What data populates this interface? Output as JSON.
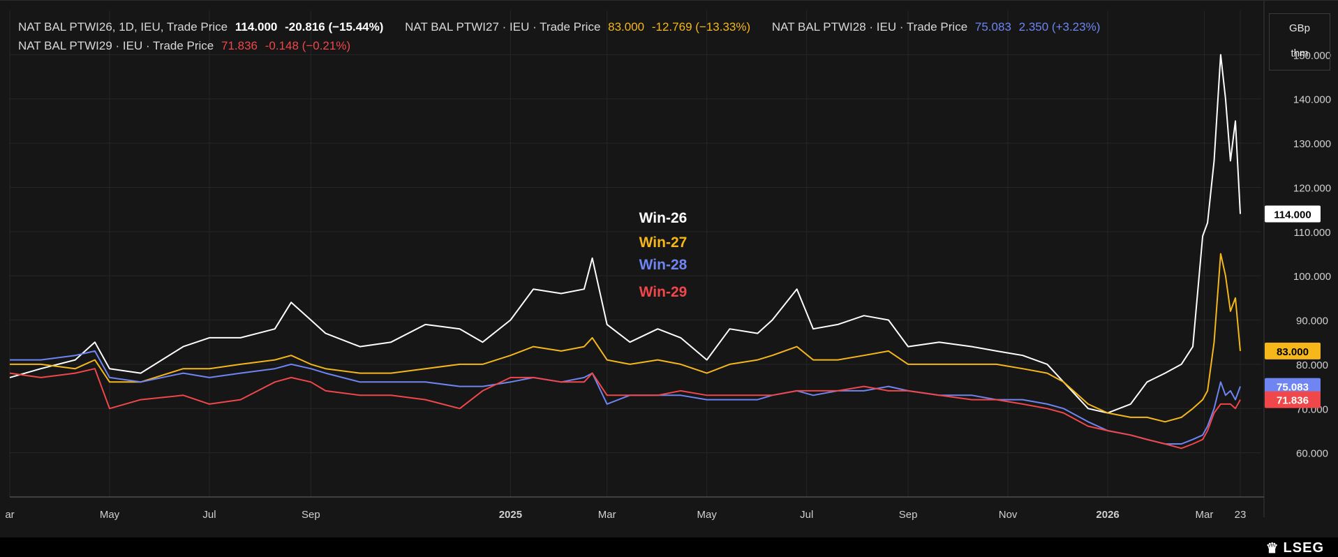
{
  "legend": [
    {
      "name": "NAT BAL PTWI26, 1D, IEU, Trade Price",
      "last": "114.000",
      "change": "-20.816 (−15.44%)",
      "color": "#ffffff",
      "line": 0
    },
    {
      "name": "NAT BAL PTWI27 · IEU · Trade Price",
      "last": "83.000",
      "change": "-12.769 (−13.33%)",
      "color": "#f5b71a",
      "line": 0
    },
    {
      "name": "NAT BAL PTWI28 · IEU · Trade Price",
      "last": "75.083",
      "change": "2.350 (+3.23%)",
      "color": "#6e85f2",
      "line": 0
    },
    {
      "name": "NAT BAL PTWI29 · IEU · Trade Price",
      "last": "71.836",
      "change": "-0.148 (−0.21%)",
      "color": "#f0474a",
      "line": 1
    }
  ],
  "unit": {
    "line1": "GBp",
    "line2": "thm"
  },
  "branding": {
    "text": "LSEG",
    "mark_icon": "lseg-crest-icon"
  },
  "chart_data": {
    "type": "line",
    "ylim": [
      50,
      160
    ],
    "y_ticks": [
      60,
      70,
      80,
      90,
      100,
      110,
      120,
      130,
      140,
      150
    ],
    "y_tick_labels": [
      "60.000",
      "70.000",
      "80.000",
      "90.000",
      "100.000",
      "110.000",
      "120.000",
      "130.000",
      "140.000",
      "150.000"
    ],
    "x_range": [
      "2024-03-01",
      "2026-03-23"
    ],
    "x_ticks": [
      {
        "date": "2024-03-01",
        "label": "ar"
      },
      {
        "date": "2024-05-01",
        "label": "May"
      },
      {
        "date": "2024-07-01",
        "label": "Jul"
      },
      {
        "date": "2024-09-01",
        "label": "Sep"
      },
      {
        "date": "2025-01-01",
        "label": "2025",
        "bold": true
      },
      {
        "date": "2025-03-01",
        "label": "Mar"
      },
      {
        "date": "2025-05-01",
        "label": "May"
      },
      {
        "date": "2025-07-01",
        "label": "Jul"
      },
      {
        "date": "2025-09-01",
        "label": "Sep"
      },
      {
        "date": "2025-11-01",
        "label": "Nov"
      },
      {
        "date": "2026-01-01",
        "label": "2026",
        "bold": true
      },
      {
        "date": "2026-03-01",
        "label": "Mar"
      },
      {
        "date": "2026-03-23",
        "label": "23"
      }
    ],
    "grid": true,
    "series": [
      {
        "name": "Win-26",
        "color": "#ffffff",
        "last_label": "114.000",
        "points": [
          [
            "2024-03-01",
            77
          ],
          [
            "2024-03-20",
            79
          ],
          [
            "2024-04-10",
            81
          ],
          [
            "2024-04-22",
            85
          ],
          [
            "2024-05-01",
            79
          ],
          [
            "2024-05-20",
            78
          ],
          [
            "2024-06-15",
            84
          ],
          [
            "2024-07-01",
            86
          ],
          [
            "2024-07-20",
            86
          ],
          [
            "2024-08-10",
            88
          ],
          [
            "2024-08-20",
            94
          ],
          [
            "2024-09-01",
            90
          ],
          [
            "2024-09-10",
            87
          ],
          [
            "2024-10-01",
            84
          ],
          [
            "2024-10-20",
            85
          ],
          [
            "2024-11-10",
            89
          ],
          [
            "2024-12-01",
            88
          ],
          [
            "2024-12-15",
            85
          ],
          [
            "2025-01-01",
            90
          ],
          [
            "2025-01-15",
            97
          ],
          [
            "2025-02-01",
            96
          ],
          [
            "2025-02-15",
            97
          ],
          [
            "2025-02-20",
            104
          ],
          [
            "2025-03-01",
            89
          ],
          [
            "2025-03-15",
            85
          ],
          [
            "2025-04-01",
            88
          ],
          [
            "2025-04-15",
            86
          ],
          [
            "2025-05-01",
            81
          ],
          [
            "2025-05-15",
            88
          ],
          [
            "2025-06-01",
            87
          ],
          [
            "2025-06-10",
            90
          ],
          [
            "2025-06-25",
            97
          ],
          [
            "2025-07-05",
            88
          ],
          [
            "2025-07-20",
            89
          ],
          [
            "2025-08-05",
            91
          ],
          [
            "2025-08-20",
            90
          ],
          [
            "2025-09-01",
            84
          ],
          [
            "2025-09-20",
            85
          ],
          [
            "2025-10-10",
            84
          ],
          [
            "2025-10-25",
            83
          ],
          [
            "2025-11-10",
            82
          ],
          [
            "2025-11-25",
            80
          ],
          [
            "2025-12-05",
            76
          ],
          [
            "2025-12-20",
            70
          ],
          [
            "2026-01-01",
            69
          ],
          [
            "2026-01-15",
            71
          ],
          [
            "2026-01-25",
            76
          ],
          [
            "2026-02-05",
            78
          ],
          [
            "2026-02-15",
            80
          ],
          [
            "2026-02-22",
            84
          ],
          [
            "2026-02-28",
            109
          ],
          [
            "2026-03-03",
            112
          ],
          [
            "2026-03-07",
            126
          ],
          [
            "2026-03-11",
            150
          ],
          [
            "2026-03-14",
            140
          ],
          [
            "2026-03-17",
            126
          ],
          [
            "2026-03-20",
            135
          ],
          [
            "2026-03-23",
            114
          ]
        ]
      },
      {
        "name": "Win-27",
        "color": "#f5b71a",
        "last_label": "83.000",
        "points": [
          [
            "2024-03-01",
            80
          ],
          [
            "2024-03-20",
            80
          ],
          [
            "2024-04-10",
            79
          ],
          [
            "2024-04-22",
            81
          ],
          [
            "2024-05-01",
            76
          ],
          [
            "2024-05-20",
            76
          ],
          [
            "2024-06-15",
            79
          ],
          [
            "2024-07-01",
            79
          ],
          [
            "2024-07-20",
            80
          ],
          [
            "2024-08-10",
            81
          ],
          [
            "2024-08-20",
            82
          ],
          [
            "2024-09-01",
            80
          ],
          [
            "2024-09-10",
            79
          ],
          [
            "2024-10-01",
            78
          ],
          [
            "2024-10-20",
            78
          ],
          [
            "2024-11-10",
            79
          ],
          [
            "2024-12-01",
            80
          ],
          [
            "2024-12-15",
            80
          ],
          [
            "2025-01-01",
            82
          ],
          [
            "2025-01-15",
            84
          ],
          [
            "2025-02-01",
            83
          ],
          [
            "2025-02-15",
            84
          ],
          [
            "2025-02-20",
            86
          ],
          [
            "2025-03-01",
            81
          ],
          [
            "2025-03-15",
            80
          ],
          [
            "2025-04-01",
            81
          ],
          [
            "2025-04-15",
            80
          ],
          [
            "2025-05-01",
            78
          ],
          [
            "2025-05-15",
            80
          ],
          [
            "2025-06-01",
            81
          ],
          [
            "2025-06-10",
            82
          ],
          [
            "2025-06-25",
            84
          ],
          [
            "2025-07-05",
            81
          ],
          [
            "2025-07-20",
            81
          ],
          [
            "2025-08-05",
            82
          ],
          [
            "2025-08-20",
            83
          ],
          [
            "2025-09-01",
            80
          ],
          [
            "2025-09-20",
            80
          ],
          [
            "2025-10-10",
            80
          ],
          [
            "2025-10-25",
            80
          ],
          [
            "2025-11-10",
            79
          ],
          [
            "2025-11-25",
            78
          ],
          [
            "2025-12-05",
            76
          ],
          [
            "2025-12-20",
            71
          ],
          [
            "2026-01-01",
            69
          ],
          [
            "2026-01-15",
            68
          ],
          [
            "2026-01-25",
            68
          ],
          [
            "2026-02-05",
            67
          ],
          [
            "2026-02-15",
            68
          ],
          [
            "2026-02-22",
            70
          ],
          [
            "2026-02-28",
            72
          ],
          [
            "2026-03-03",
            74
          ],
          [
            "2026-03-07",
            85
          ],
          [
            "2026-03-11",
            105
          ],
          [
            "2026-03-14",
            100
          ],
          [
            "2026-03-17",
            92
          ],
          [
            "2026-03-20",
            95
          ],
          [
            "2026-03-23",
            83
          ]
        ]
      },
      {
        "name": "Win-28",
        "color": "#6e85f2",
        "last_label": "75.083",
        "points": [
          [
            "2024-03-01",
            81
          ],
          [
            "2024-03-20",
            81
          ],
          [
            "2024-04-10",
            82
          ],
          [
            "2024-04-22",
            83
          ],
          [
            "2024-05-01",
            77
          ],
          [
            "2024-05-20",
            76
          ],
          [
            "2024-06-15",
            78
          ],
          [
            "2024-07-01",
            77
          ],
          [
            "2024-07-20",
            78
          ],
          [
            "2024-08-10",
            79
          ],
          [
            "2024-08-20",
            80
          ],
          [
            "2024-09-01",
            79
          ],
          [
            "2024-09-10",
            78
          ],
          [
            "2024-10-01",
            76
          ],
          [
            "2024-10-20",
            76
          ],
          [
            "2024-11-10",
            76
          ],
          [
            "2024-12-01",
            75
          ],
          [
            "2024-12-15",
            75
          ],
          [
            "2025-01-01",
            76
          ],
          [
            "2025-01-15",
            77
          ],
          [
            "2025-02-01",
            76
          ],
          [
            "2025-02-15",
            77
          ],
          [
            "2025-02-20",
            78
          ],
          [
            "2025-03-01",
            71
          ],
          [
            "2025-03-15",
            73
          ],
          [
            "2025-04-01",
            73
          ],
          [
            "2025-04-15",
            73
          ],
          [
            "2025-05-01",
            72
          ],
          [
            "2025-05-15",
            72
          ],
          [
            "2025-06-01",
            72
          ],
          [
            "2025-06-10",
            73
          ],
          [
            "2025-06-25",
            74
          ],
          [
            "2025-07-05",
            73
          ],
          [
            "2025-07-20",
            74
          ],
          [
            "2025-08-05",
            74
          ],
          [
            "2025-08-20",
            75
          ],
          [
            "2025-09-01",
            74
          ],
          [
            "2025-09-20",
            73
          ],
          [
            "2025-10-10",
            73
          ],
          [
            "2025-10-25",
            72
          ],
          [
            "2025-11-10",
            72
          ],
          [
            "2025-11-25",
            71
          ],
          [
            "2025-12-05",
            70
          ],
          [
            "2025-12-20",
            67
          ],
          [
            "2026-01-01",
            65
          ],
          [
            "2026-01-15",
            64
          ],
          [
            "2026-01-25",
            63
          ],
          [
            "2026-02-05",
            62
          ],
          [
            "2026-02-15",
            62
          ],
          [
            "2026-02-22",
            63
          ],
          [
            "2026-02-28",
            64
          ],
          [
            "2026-03-03",
            66
          ],
          [
            "2026-03-07",
            70
          ],
          [
            "2026-03-11",
            76
          ],
          [
            "2026-03-14",
            73
          ],
          [
            "2026-03-17",
            74
          ],
          [
            "2026-03-20",
            72
          ],
          [
            "2026-03-23",
            75
          ]
        ]
      },
      {
        "name": "Win-29",
        "color": "#f0474a",
        "last_label": "71.836",
        "points": [
          [
            "2024-03-01",
            78
          ],
          [
            "2024-03-20",
            77
          ],
          [
            "2024-04-10",
            78
          ],
          [
            "2024-04-22",
            79
          ],
          [
            "2024-05-01",
            70
          ],
          [
            "2024-05-20",
            72
          ],
          [
            "2024-06-15",
            73
          ],
          [
            "2024-07-01",
            71
          ],
          [
            "2024-07-20",
            72
          ],
          [
            "2024-08-10",
            76
          ],
          [
            "2024-08-20",
            77
          ],
          [
            "2024-09-01",
            76
          ],
          [
            "2024-09-10",
            74
          ],
          [
            "2024-10-01",
            73
          ],
          [
            "2024-10-20",
            73
          ],
          [
            "2024-11-10",
            72
          ],
          [
            "2024-12-01",
            70
          ],
          [
            "2024-12-15",
            74
          ],
          [
            "2025-01-01",
            77
          ],
          [
            "2025-01-15",
            77
          ],
          [
            "2025-02-01",
            76
          ],
          [
            "2025-02-15",
            76
          ],
          [
            "2025-02-20",
            78
          ],
          [
            "2025-03-01",
            73
          ],
          [
            "2025-03-15",
            73
          ],
          [
            "2025-04-01",
            73
          ],
          [
            "2025-04-15",
            74
          ],
          [
            "2025-05-01",
            73
          ],
          [
            "2025-05-15",
            73
          ],
          [
            "2025-06-01",
            73
          ],
          [
            "2025-06-10",
            73
          ],
          [
            "2025-06-25",
            74
          ],
          [
            "2025-07-05",
            74
          ],
          [
            "2025-07-20",
            74
          ],
          [
            "2025-08-05",
            75
          ],
          [
            "2025-08-20",
            74
          ],
          [
            "2025-09-01",
            74
          ],
          [
            "2025-09-20",
            73
          ],
          [
            "2025-10-10",
            72
          ],
          [
            "2025-10-25",
            72
          ],
          [
            "2025-11-10",
            71
          ],
          [
            "2025-11-25",
            70
          ],
          [
            "2025-12-05",
            69
          ],
          [
            "2025-12-20",
            66
          ],
          [
            "2026-01-01",
            65
          ],
          [
            "2026-01-15",
            64
          ],
          [
            "2026-01-25",
            63
          ],
          [
            "2026-02-05",
            62
          ],
          [
            "2026-02-15",
            61
          ],
          [
            "2026-02-22",
            62
          ],
          [
            "2026-02-28",
            63
          ],
          [
            "2026-03-03",
            65
          ],
          [
            "2026-03-07",
            69
          ],
          [
            "2026-03-11",
            71
          ],
          [
            "2026-03-14",
            71
          ],
          [
            "2026-03-17",
            71
          ],
          [
            "2026-03-20",
            70
          ],
          [
            "2026-03-23",
            72
          ]
        ]
      }
    ]
  }
}
